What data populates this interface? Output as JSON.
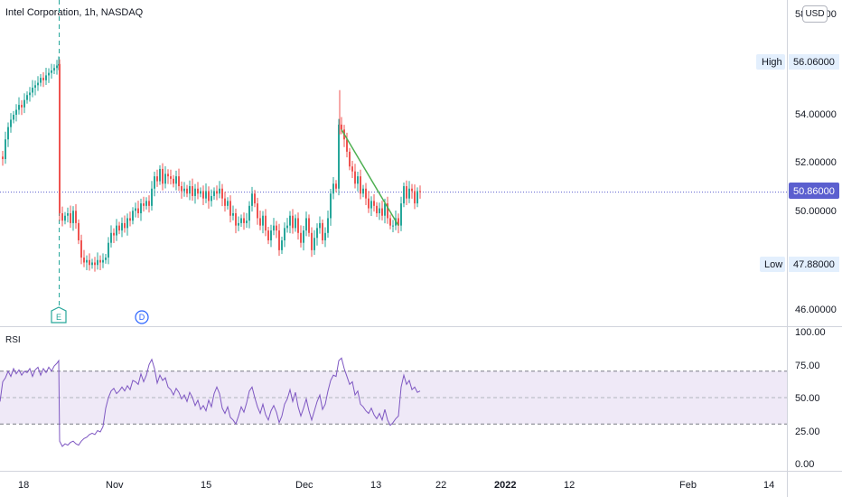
{
  "header": {
    "title": "Intel Corporation, 1h, NASDAQ",
    "currency": "USD"
  },
  "chart_data": {
    "type": "candlestick",
    "symbol": "Intel Corporation",
    "interval": "1h",
    "exchange": "NASDAQ",
    "price_axis": {
      "ylim": [
        45.5,
        58.4
      ],
      "ticks": [
        "58.00000",
        "56.06000",
        "54.00000",
        "52.00000",
        "50.00000",
        "47.88000",
        "46.00000"
      ]
    },
    "x_axis_labels": [
      "18",
      "Nov",
      "15",
      "Dec",
      "13",
      "22",
      "2022",
      "12",
      "Feb",
      "14"
    ],
    "high": {
      "label": "High",
      "value": "56.06000"
    },
    "low": {
      "label": "Low",
      "value": "47.88000"
    },
    "last_price": "50.86000",
    "events": [
      {
        "label": "E"
      },
      {
        "label": "D"
      }
    ],
    "price_path": [
      [
        0,
        52.3
      ],
      [
        3,
        52.2
      ],
      [
        6,
        53.0
      ],
      [
        9,
        53.5
      ],
      [
        12,
        53.8
      ],
      [
        15,
        54.0
      ],
      [
        18,
        54.2
      ],
      [
        21,
        54.4
      ],
      [
        24,
        54.3
      ],
      [
        27,
        54.6
      ],
      [
        30,
        54.8
      ],
      [
        33,
        54.9
      ],
      [
        36,
        55.1
      ],
      [
        39,
        55.2
      ],
      [
        42,
        55.3
      ],
      [
        45,
        55.5
      ],
      [
        48,
        55.4
      ],
      [
        51,
        55.6
      ],
      [
        54,
        55.7
      ],
      [
        57,
        55.8
      ],
      [
        60,
        55.9
      ],
      [
        63,
        56.0
      ],
      [
        65,
        56.06
      ],
      [
        66,
        50.0
      ],
      [
        69,
        49.7
      ],
      [
        72,
        49.9
      ],
      [
        75,
        50.0
      ],
      [
        78,
        49.6
      ],
      [
        81,
        50.1
      ],
      [
        84,
        49.6
      ],
      [
        87,
        48.9
      ],
      [
        90,
        48.2
      ],
      [
        93,
        48.0
      ],
      [
        96,
        48.1
      ],
      [
        99,
        47.9
      ],
      [
        102,
        48.0
      ],
      [
        105,
        47.9
      ],
      [
        108,
        48.1
      ],
      [
        111,
        48.0
      ],
      [
        114,
        48.1
      ],
      [
        117,
        48.2
      ],
      [
        120,
        48.8
      ],
      [
        123,
        49.2
      ],
      [
        126,
        49.1
      ],
      [
        129,
        49.5
      ],
      [
        132,
        49.3
      ],
      [
        135,
        49.6
      ],
      [
        138,
        49.4
      ],
      [
        141,
        49.8
      ],
      [
        144,
        49.7
      ],
      [
        147,
        50.1
      ],
      [
        150,
        50.2
      ],
      [
        153,
        50.0
      ],
      [
        156,
        50.4
      ],
      [
        159,
        50.3
      ],
      [
        162,
        50.5
      ],
      [
        165,
        50.3
      ],
      [
        168,
        51.0
      ],
      [
        171,
        51.5
      ],
      [
        174,
        51.3
      ],
      [
        177,
        51.8
      ],
      [
        180,
        51.2
      ],
      [
        183,
        51.6
      ],
      [
        186,
        51.5
      ],
      [
        189,
        51.4
      ],
      [
        192,
        51.2
      ],
      [
        195,
        51.5
      ],
      [
        198,
        51.1
      ],
      [
        201,
        50.9
      ],
      [
        204,
        51.0
      ],
      [
        207,
        50.8
      ],
      [
        210,
        51.1
      ],
      [
        213,
        50.7
      ],
      [
        216,
        51.0
      ],
      [
        219,
        50.8
      ],
      [
        222,
        50.9
      ],
      [
        225,
        50.6
      ],
      [
        228,
        50.9
      ],
      [
        231,
        50.5
      ],
      [
        234,
        50.7
      ],
      [
        237,
        50.9
      ],
      [
        240,
        50.8
      ],
      [
        243,
        51.0
      ],
      [
        246,
        50.6
      ],
      [
        249,
        50.3
      ],
      [
        252,
        50.5
      ],
      [
        255,
        49.9
      ],
      [
        258,
        50.0
      ],
      [
        261,
        49.5
      ],
      [
        264,
        49.6
      ],
      [
        267,
        49.8
      ],
      [
        270,
        49.6
      ],
      [
        273,
        49.7
      ],
      [
        276,
        50.3
      ],
      [
        279,
        50.8
      ],
      [
        282,
        50.4
      ],
      [
        285,
        49.8
      ],
      [
        288,
        49.5
      ],
      [
        291,
        49.9
      ],
      [
        294,
        49.3
      ],
      [
        297,
        48.9
      ],
      [
        300,
        49.3
      ],
      [
        303,
        49.5
      ],
      [
        306,
        49.3
      ],
      [
        309,
        48.5
      ],
      [
        312,
        48.9
      ],
      [
        315,
        49.4
      ],
      [
        318,
        49.5
      ],
      [
        321,
        49.9
      ],
      [
        324,
        49.4
      ],
      [
        327,
        49.8
      ],
      [
        330,
        49.2
      ],
      [
        333,
        48.8
      ],
      [
        336,
        49.3
      ],
      [
        339,
        49.8
      ],
      [
        342,
        49.2
      ],
      [
        345,
        48.5
      ],
      [
        348,
        49.0
      ],
      [
        351,
        49.4
      ],
      [
        354,
        49.6
      ],
      [
        357,
        48.9
      ],
      [
        360,
        49.2
      ],
      [
        363,
        49.8
      ],
      [
        366,
        50.8
      ],
      [
        369,
        51.2
      ],
      [
        372,
        51.0
      ],
      [
        375,
        53.6
      ],
      [
        378,
        53.4
      ],
      [
        381,
        53.0
      ],
      [
        384,
        52.5
      ],
      [
        387,
        51.9
      ],
      [
        390,
        51.7
      ],
      [
        393,
        51.2
      ],
      [
        396,
        51.5
      ],
      [
        399,
        50.8
      ],
      [
        402,
        51.0
      ],
      [
        405,
        50.6
      ],
      [
        408,
        50.2
      ],
      [
        411,
        50.5
      ],
      [
        414,
        50.3
      ],
      [
        417,
        50.0
      ],
      [
        420,
        50.2
      ],
      [
        423,
        49.9
      ],
      [
        426,
        50.4
      ],
      [
        429,
        49.8
      ],
      [
        432,
        49.5
      ],
      [
        435,
        49.5
      ],
      [
        438,
        49.8
      ],
      [
        441,
        49.5
      ],
      [
        444,
        50.4
      ],
      [
        447,
        51.1
      ],
      [
        450,
        50.6
      ],
      [
        453,
        51.0
      ],
      [
        456,
        50.9
      ],
      [
        459,
        50.4
      ],
      [
        462,
        50.9
      ],
      [
        465,
        50.86
      ]
    ],
    "annotations": [
      {
        "type": "trendline",
        "from": [
          378,
          53.4
        ],
        "to": [
          441,
          49.5
        ],
        "color": "#4caf50"
      },
      {
        "type": "wick",
        "x": 376,
        "high": 55.0,
        "low": 53.2
      }
    ],
    "rsi": {
      "label": "RSI",
      "ylim": [
        0,
        100
      ],
      "ticks": [
        "100.00",
        "75.00",
        "50.00",
        "25.00",
        "0.00"
      ],
      "bands": [
        30,
        50,
        70
      ],
      "color": "#7e57c2",
      "values": [
        [
          0,
          47
        ],
        [
          3,
          62
        ],
        [
          6,
          65
        ],
        [
          9,
          70
        ],
        [
          12,
          66
        ],
        [
          15,
          72
        ],
        [
          18,
          68
        ],
        [
          21,
          71
        ],
        [
          24,
          67
        ],
        [
          27,
          70
        ],
        [
          30,
          69
        ],
        [
          33,
          72
        ],
        [
          36,
          66
        ],
        [
          39,
          71
        ],
        [
          42,
          73
        ],
        [
          45,
          67
        ],
        [
          48,
          72
        ],
        [
          51,
          69
        ],
        [
          54,
          73
        ],
        [
          57,
          70
        ],
        [
          60,
          74
        ],
        [
          63,
          76
        ],
        [
          65,
          78
        ],
        [
          66,
          17
        ],
        [
          69,
          13
        ],
        [
          72,
          15
        ],
        [
          75,
          14
        ],
        [
          78,
          16
        ],
        [
          81,
          17
        ],
        [
          84,
          15
        ],
        [
          87,
          14
        ],
        [
          90,
          17
        ],
        [
          93,
          19
        ],
        [
          96,
          20
        ],
        [
          99,
          22
        ],
        [
          102,
          23
        ],
        [
          105,
          22
        ],
        [
          108,
          25
        ],
        [
          111,
          24
        ],
        [
          114,
          28
        ],
        [
          117,
          42
        ],
        [
          120,
          50
        ],
        [
          123,
          55
        ],
        [
          126,
          57
        ],
        [
          129,
          53
        ],
        [
          132,
          55
        ],
        [
          135,
          58
        ],
        [
          138,
          55
        ],
        [
          141,
          59
        ],
        [
          144,
          56
        ],
        [
          147,
          63
        ],
        [
          150,
          62
        ],
        [
          153,
          60
        ],
        [
          156,
          68
        ],
        [
          159,
          62
        ],
        [
          162,
          67
        ],
        [
          165,
          75
        ],
        [
          168,
          79
        ],
        [
          171,
          72
        ],
        [
          174,
          61
        ],
        [
          177,
          67
        ],
        [
          180,
          63
        ],
        [
          183,
          65
        ],
        [
          186,
          58
        ],
        [
          189,
          56
        ],
        [
          192,
          52
        ],
        [
          195,
          57
        ],
        [
          198,
          54
        ],
        [
          201,
          49
        ],
        [
          204,
          52
        ],
        [
          207,
          47
        ],
        [
          210,
          54
        ],
        [
          213,
          50
        ],
        [
          216,
          44
        ],
        [
          219,
          48
        ],
        [
          222,
          41
        ],
        [
          225,
          44
        ],
        [
          228,
          40
        ],
        [
          231,
          48
        ],
        [
          234,
          43
        ],
        [
          237,
          53
        ],
        [
          240,
          58
        ],
        [
          243,
          53
        ],
        [
          246,
          42
        ],
        [
          249,
          38
        ],
        [
          252,
          43
        ],
        [
          255,
          35
        ],
        [
          258,
          33
        ],
        [
          261,
          30
        ],
        [
          264,
          36
        ],
        [
          267,
          43
        ],
        [
          270,
          39
        ],
        [
          273,
          46
        ],
        [
          276,
          55
        ],
        [
          279,
          58
        ],
        [
          282,
          50
        ],
        [
          285,
          43
        ],
        [
          288,
          38
        ],
        [
          291,
          45
        ],
        [
          294,
          37
        ],
        [
          297,
          33
        ],
        [
          300,
          40
        ],
        [
          303,
          44
        ],
        [
          306,
          39
        ],
        [
          309,
          31
        ],
        [
          312,
          36
        ],
        [
          315,
          45
        ],
        [
          318,
          49
        ],
        [
          321,
          56
        ],
        [
          324,
          47
        ],
        [
          327,
          54
        ],
        [
          330,
          43
        ],
        [
          333,
          36
        ],
        [
          336,
          42
        ],
        [
          339,
          49
        ],
        [
          342,
          40
        ],
        [
          345,
          33
        ],
        [
          348,
          40
        ],
        [
          351,
          47
        ],
        [
          354,
          52
        ],
        [
          357,
          41
        ],
        [
          360,
          45
        ],
        [
          363,
          55
        ],
        [
          366,
          63
        ],
        [
          369,
          67
        ],
        [
          372,
          66
        ],
        [
          375,
          78
        ],
        [
          378,
          80
        ],
        [
          381,
          72
        ],
        [
          384,
          66
        ],
        [
          387,
          60
        ],
        [
          390,
          62
        ],
        [
          393,
          52
        ],
        [
          396,
          55
        ],
        [
          399,
          45
        ],
        [
          402,
          43
        ],
        [
          405,
          40
        ],
        [
          408,
          38
        ],
        [
          411,
          42
        ],
        [
          414,
          37
        ],
        [
          417,
          34
        ],
        [
          420,
          38
        ],
        [
          423,
          33
        ],
        [
          426,
          41
        ],
        [
          429,
          33
        ],
        [
          432,
          29
        ],
        [
          435,
          31
        ],
        [
          438,
          34
        ],
        [
          441,
          36
        ],
        [
          444,
          58
        ],
        [
          447,
          67
        ],
        [
          450,
          60
        ],
        [
          453,
          63
        ],
        [
          456,
          56
        ],
        [
          459,
          58
        ],
        [
          462,
          54
        ],
        [
          465,
          55
        ]
      ]
    }
  }
}
